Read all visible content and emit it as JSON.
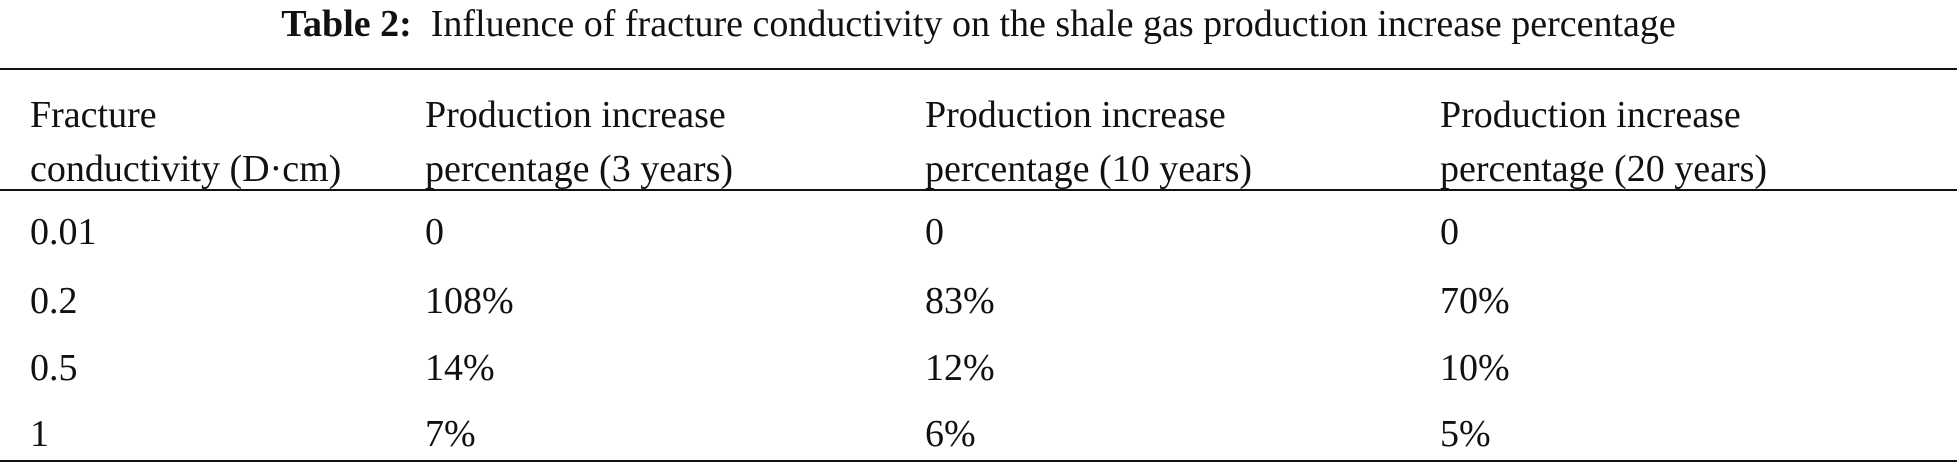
{
  "caption": {
    "label": "Table 2:",
    "text": "Influence of fracture conductivity on the shale gas production increase percentage"
  },
  "table": {
    "headers": [
      [
        "Fracture",
        "conductivity (D·cm)"
      ],
      [
        "Production increase",
        "percentage (3 years)"
      ],
      [
        "Production increase",
        "percentage (10 years)"
      ],
      [
        "Production increase",
        "percentage (20 years)"
      ]
    ],
    "rows": [
      [
        "0.01",
        "0",
        "0",
        "0"
      ],
      [
        "0.2",
        "108%",
        "83%",
        "70%"
      ],
      [
        "0.5",
        "14%",
        "12%",
        "10%"
      ],
      [
        "1",
        "7%",
        "6%",
        "5%"
      ]
    ]
  }
}
